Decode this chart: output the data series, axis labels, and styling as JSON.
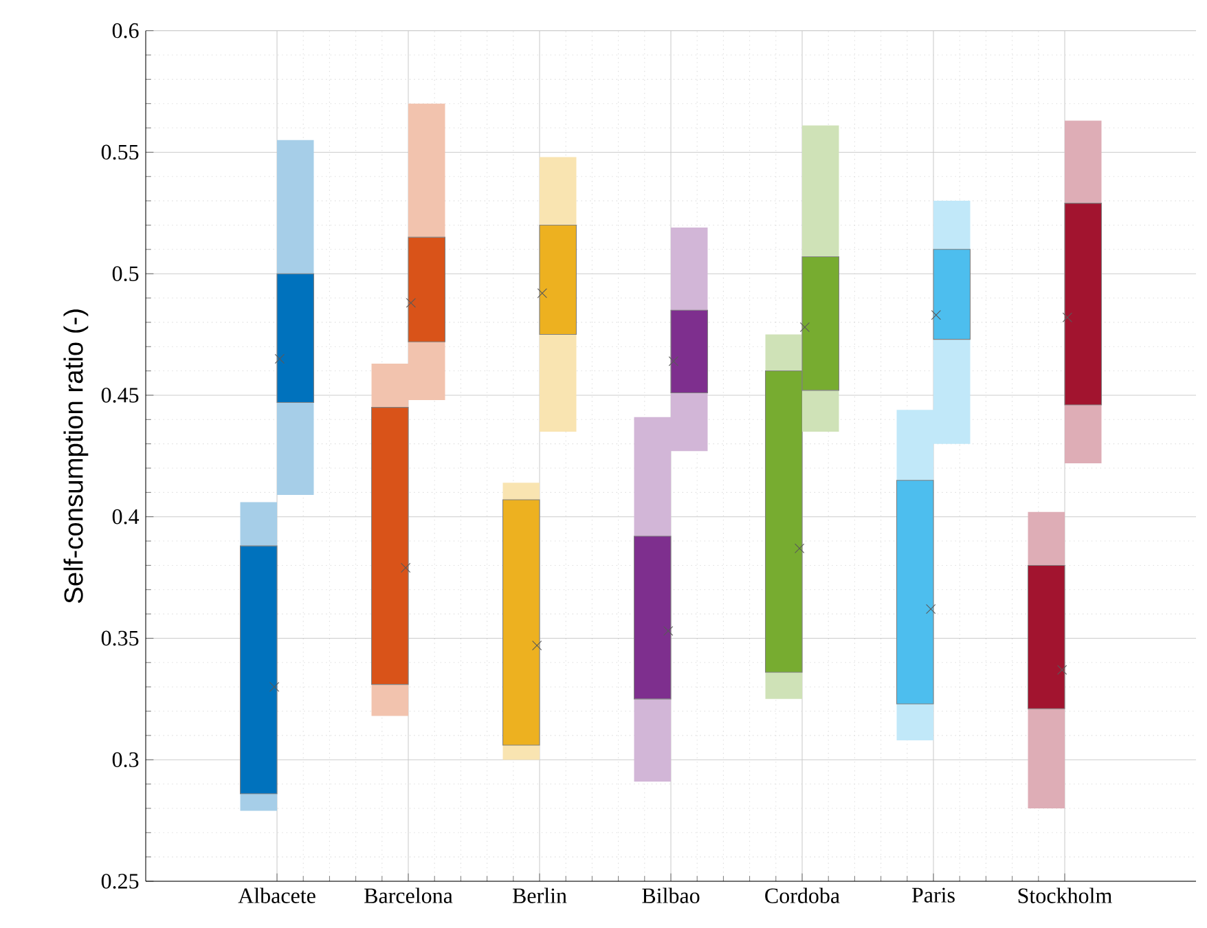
{
  "chart_data": {
    "type": "box",
    "ylabel": "Self-consumption ratio (-)",
    "categories": [
      "Albacete",
      "Barcelona",
      "Berlin",
      "Bilbao",
      "Cordoba",
      "Paris",
      "Stockholm"
    ],
    "series": [
      {
        "colors": [
          "#0072bd",
          "#d95319",
          "#edb120",
          "#7e2f8e",
          "#77ac30",
          "#4dbeee",
          "#a2142f"
        ],
        "boxes": [
          {
            "low": 0.279,
            "q1": 0.286,
            "q3": 0.388,
            "high": 0.406,
            "mean": 0.33
          },
          {
            "low": 0.318,
            "q1": 0.331,
            "q3": 0.445,
            "high": 0.463,
            "mean": 0.379
          },
          {
            "low": 0.3,
            "q1": 0.306,
            "q3": 0.407,
            "high": 0.414,
            "mean": 0.347
          },
          {
            "low": 0.291,
            "q1": 0.325,
            "q3": 0.392,
            "high": 0.441,
            "mean": 0.353
          },
          {
            "low": 0.325,
            "q1": 0.336,
            "q3": 0.46,
            "high": 0.475,
            "mean": 0.387
          },
          {
            "low": 0.308,
            "q1": 0.323,
            "q3": 0.415,
            "high": 0.444,
            "mean": 0.362
          },
          {
            "low": 0.28,
            "q1": 0.321,
            "q3": 0.38,
            "high": 0.402,
            "mean": 0.337
          }
        ]
      },
      {
        "colors": [
          "#0072bd",
          "#d95319",
          "#edb120",
          "#7e2f8e",
          "#77ac30",
          "#4dbeee",
          "#a2142f"
        ],
        "boxes": [
          {
            "low": 0.409,
            "q1": 0.447,
            "q3": 0.5,
            "high": 0.555,
            "mean": 0.465
          },
          {
            "low": 0.448,
            "q1": 0.472,
            "q3": 0.515,
            "high": 0.57,
            "mean": 0.488
          },
          {
            "low": 0.435,
            "q1": 0.475,
            "q3": 0.52,
            "high": 0.548,
            "mean": 0.492
          },
          {
            "low": 0.427,
            "q1": 0.451,
            "q3": 0.485,
            "high": 0.519,
            "mean": 0.464
          },
          {
            "low": 0.435,
            "q1": 0.452,
            "q3": 0.507,
            "high": 0.561,
            "mean": 0.478
          },
          {
            "low": 0.43,
            "q1": 0.473,
            "q3": 0.51,
            "high": 0.53,
            "mean": 0.483
          },
          {
            "low": 0.422,
            "q1": 0.446,
            "q3": 0.529,
            "high": 0.563,
            "mean": 0.482
          }
        ]
      }
    ],
    "ylim": [
      0.25,
      0.6
    ],
    "yticks": [
      0.25,
      0.3,
      0.35,
      0.4,
      0.45,
      0.5,
      0.55,
      0.6
    ],
    "grid": true,
    "marker": "cross"
  }
}
